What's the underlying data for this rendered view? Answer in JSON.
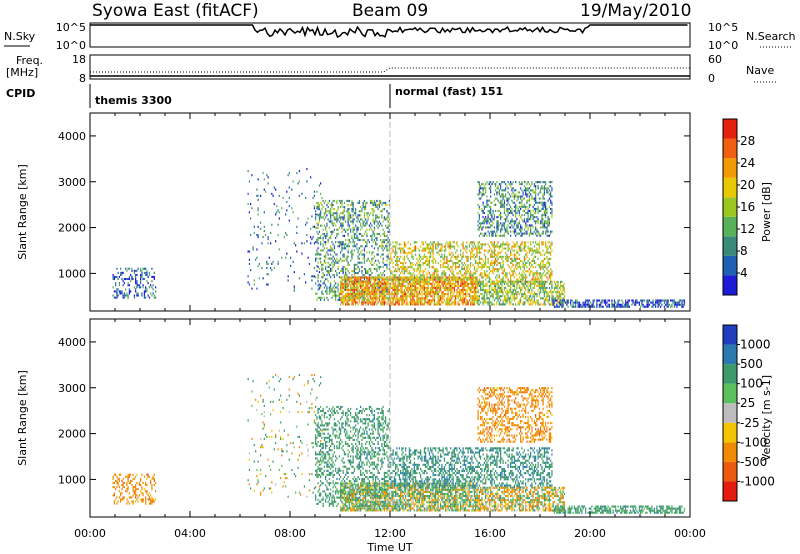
{
  "header": {
    "station": "Syowa East (fitACF)",
    "beam": "Beam 09",
    "date": "19/May/2010"
  },
  "noise_panel": {
    "left_label": "N.Sky",
    "right_label": "N.Search",
    "left_ticks": [
      "10^5",
      "10^0"
    ],
    "right_ticks": [
      "10^5",
      "10^0"
    ]
  },
  "freq_panel": {
    "left_label_line1": "Freq.",
    "left_label_line2": "[MHz]",
    "right_label": "Nave",
    "left_ticks": [
      "18",
      "8"
    ],
    "right_ticks": [
      "60",
      "0"
    ]
  },
  "cpid_panel": {
    "label": "CPID",
    "segments": [
      {
        "name": "themis 3300",
        "start_hour": 0
      },
      {
        "name": "normal (fast) 151",
        "start_hour": 12
      }
    ]
  },
  "x_axis": {
    "label": "Time UT",
    "ticks": [
      "00:00",
      "04:00",
      "08:00",
      "12:00",
      "16:00",
      "20:00",
      "00:00"
    ]
  },
  "power_panel": {
    "ylabel": "Slant Range [km]",
    "yticks": [
      "1000",
      "2000",
      "3000",
      "4000"
    ],
    "colorbar_label": "Power [dB]",
    "colorbar_ticks": [
      "4",
      "8",
      "12",
      "16",
      "20",
      "24",
      "28"
    ],
    "colors": [
      "#1c1cd8",
      "#1f5fb4",
      "#3a8a7a",
      "#58b058",
      "#9ac820",
      "#e8c800",
      "#f29a00",
      "#ee6010",
      "#e42010"
    ]
  },
  "velocity_panel": {
    "ylabel": "Slant Range [km]",
    "yticks": [
      "1000",
      "2000",
      "3000",
      "4000"
    ],
    "colorbar_label": "Velocity [m s-1]",
    "colorbar_ticks": [
      "1000",
      "500",
      "100",
      "25",
      "-25",
      "-100",
      "-500",
      "-1000"
    ],
    "colors": [
      "#1f3fbf",
      "#2a7ab0",
      "#3e9a6a",
      "#5cc05c",
      "#bdbdbd",
      "#f4c400",
      "#f08a00",
      "#ec5a10",
      "#e41c10"
    ]
  },
  "chart_data": [
    {
      "type": "heatmap",
      "title": "",
      "xlabel": "Time UT",
      "ylabel": "Slant Range [km]",
      "xlim": [
        0,
        24
      ],
      "ylim": [
        180,
        4500
      ],
      "legend": "Power [dB]",
      "colorbar_range": [
        0,
        30
      ],
      "regions": [
        {
          "t0": 0.9,
          "t1": 2.6,
          "r0": 450,
          "r1": 1100,
          "value": 5,
          "density": 0.35
        },
        {
          "t0": 6.3,
          "t1": 9.3,
          "r0": 600,
          "r1": 3300,
          "value": 6,
          "density": 0.05
        },
        {
          "t0": 9.0,
          "t1": 12.0,
          "r0": 400,
          "r1": 2600,
          "value": 10,
          "density": 0.35
        },
        {
          "t0": 10.0,
          "t1": 15.5,
          "r0": 300,
          "r1": 900,
          "value": 21,
          "density": 0.75
        },
        {
          "t0": 12.0,
          "t1": 18.5,
          "r0": 800,
          "r1": 1700,
          "value": 17,
          "density": 0.45
        },
        {
          "t0": 15.5,
          "t1": 18.5,
          "r0": 1800,
          "r1": 3000,
          "value": 9,
          "density": 0.4
        },
        {
          "t0": 15.5,
          "t1": 19.0,
          "r0": 300,
          "r1": 800,
          "value": 14,
          "density": 0.6
        },
        {
          "t0": 18.5,
          "t1": 23.8,
          "r0": 250,
          "r1": 400,
          "value": 4,
          "density": 0.6
        }
      ]
    },
    {
      "type": "heatmap",
      "title": "",
      "xlabel": "Time UT",
      "ylabel": "Slant Range [km]",
      "xlim": [
        0,
        24
      ],
      "ylim": [
        180,
        4500
      ],
      "legend": "Velocity [m s-1]",
      "colorbar_ticks": [
        1000,
        500,
        100,
        25,
        -25,
        -100,
        -500,
        -1000
      ],
      "regions": [
        {
          "t0": 0.9,
          "t1": 2.6,
          "r0": 450,
          "r1": 1100,
          "value": -300,
          "density": 0.35
        },
        {
          "t0": 6.3,
          "t1": 9.3,
          "r0": 600,
          "r1": 3300,
          "value": 40,
          "density": 0.05
        },
        {
          "t0": 9.0,
          "t1": 12.0,
          "r0": 400,
          "r1": 2600,
          "value": 300,
          "density": 0.35
        },
        {
          "t0": 10.0,
          "t1": 15.5,
          "r0": 300,
          "r1": 900,
          "value": 60,
          "density": 0.75
        },
        {
          "t0": 12.0,
          "t1": 18.5,
          "r0": 800,
          "r1": 1700,
          "value": 400,
          "density": 0.45
        },
        {
          "t0": 15.5,
          "t1": 18.5,
          "r0": 1800,
          "r1": 3000,
          "value": -300,
          "density": 0.4
        },
        {
          "t0": 15.5,
          "t1": 19.0,
          "r0": 300,
          "r1": 800,
          "value": -50,
          "density": 0.6
        },
        {
          "t0": 18.5,
          "t1": 23.8,
          "r0": 250,
          "r1": 400,
          "value": 300,
          "density": 0.6
        }
      ]
    }
  ]
}
